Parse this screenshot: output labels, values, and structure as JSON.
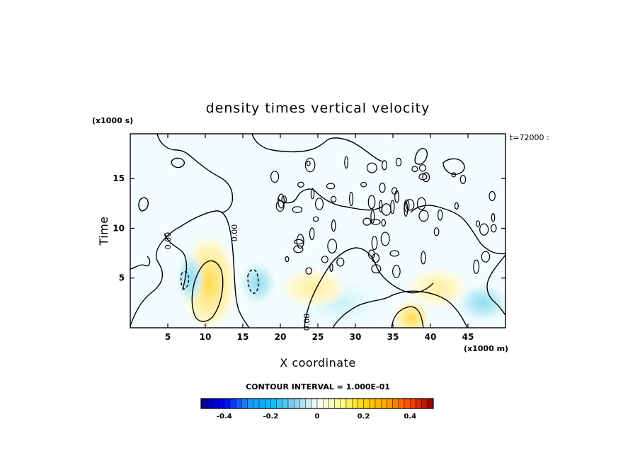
{
  "chart_data": {
    "type": "heatmap",
    "title": "density times vertical velocity",
    "xlabel": "X coordinate",
    "ylabel": "Time",
    "x_unit": "(x1000 m)",
    "y_unit": "(x1000 s)",
    "time_stamp": "t=72000 :",
    "xlim": [
      0,
      50
    ],
    "ylim": [
      0,
      19.5
    ],
    "x_ticks": [
      5,
      10,
      15,
      20,
      25,
      30,
      35,
      40,
      45
    ],
    "y_ticks": [
      5,
      10,
      15
    ],
    "contour_labels": [
      "0.00",
      "0.00",
      "0.00"
    ],
    "contour_interval_text": "CONTOUR INTERVAL = 1.000E-01",
    "colorbar": {
      "min": -0.5,
      "max": 0.5,
      "tick_values": [
        -0.4,
        -0.2,
        0,
        0.2,
        0.4
      ],
      "tick_labels": [
        "-0.4",
        "-0.2",
        "0",
        "0.2",
        "0.4"
      ],
      "colors": [
        "#00008b",
        "#0000ff",
        "#1e90ff",
        "#00bfff",
        "#87ceeb",
        "#f5fffa",
        "#ffff99",
        "#ffd700",
        "#ffa500",
        "#ff4500",
        "#8b0000"
      ]
    },
    "anomalies": [
      {
        "x": 10.5,
        "y": 4.5,
        "value": 0.15
      },
      {
        "x": 8.0,
        "y": 5.0,
        "value": -0.12
      },
      {
        "x": 17.0,
        "y": 4.5,
        "value": -0.12
      },
      {
        "x": 37.5,
        "y": 1.0,
        "value": 0.12
      },
      {
        "x": 28.0,
        "y": 2.5,
        "value": -0.08
      },
      {
        "x": 47.0,
        "y": 2.5,
        "value": -0.1
      },
      {
        "x": 24.5,
        "y": 4.0,
        "value": 0.06
      },
      {
        "x": 41.0,
        "y": 4.0,
        "value": 0.05
      }
    ]
  }
}
